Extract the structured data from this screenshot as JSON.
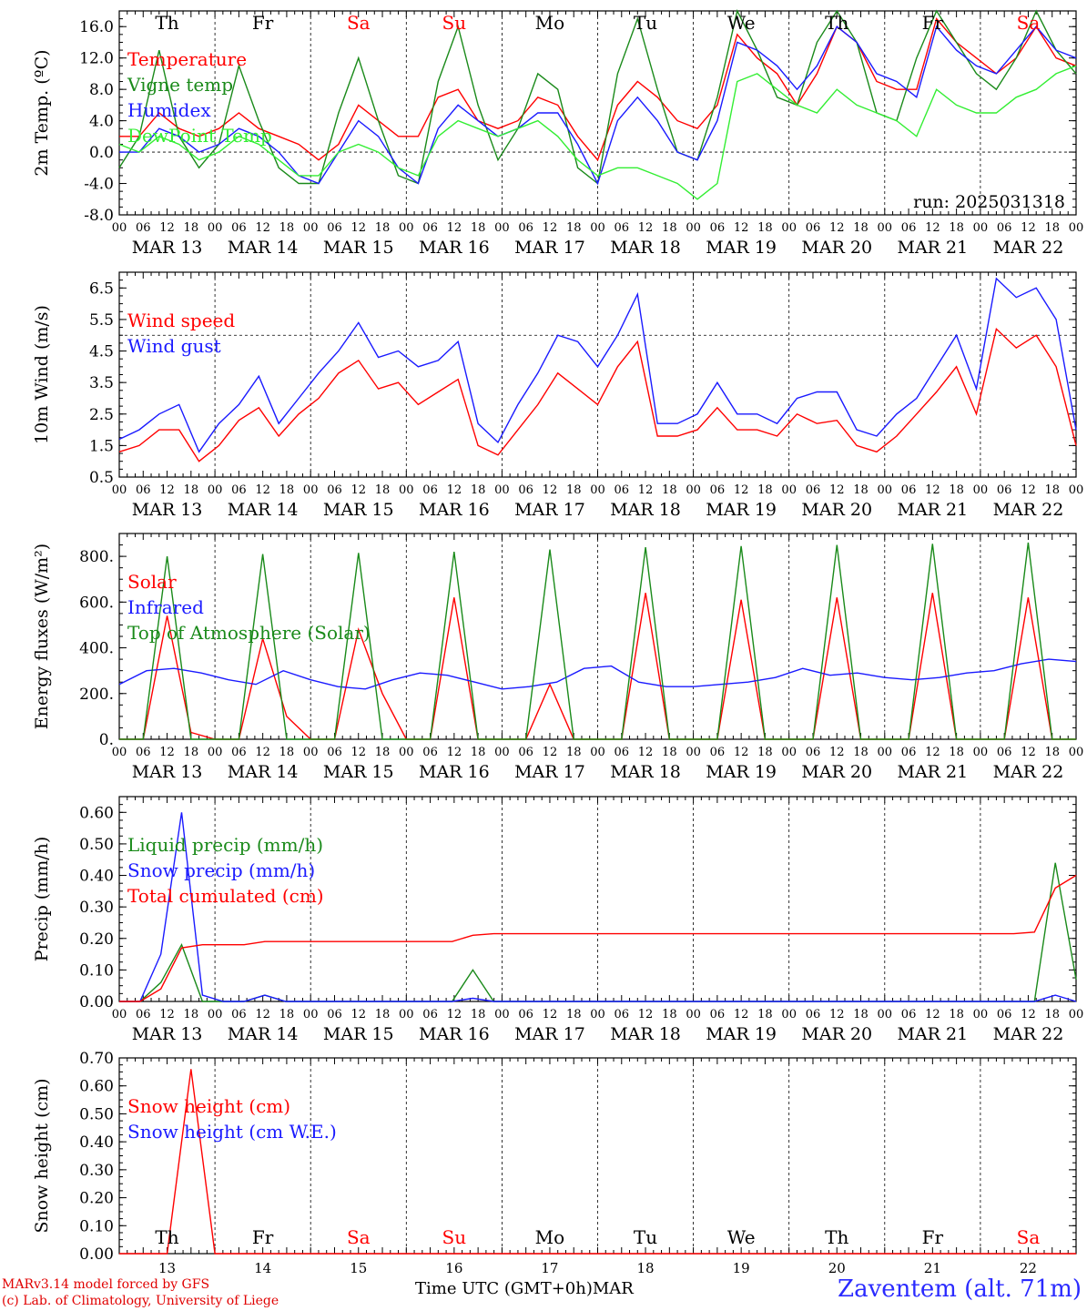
{
  "colors": {
    "red": "#ff0000",
    "green": "#1a8a1a",
    "blue": "#1a1aff",
    "lightgreen": "#33ee33",
    "black": "#000000"
  },
  "day_labels": [
    "Th",
    "Fr",
    "Sa",
    "Su",
    "Mo",
    "Tu",
    "We",
    "Th",
    "Fr",
    "Sa"
  ],
  "weekend_days": [
    "Sa",
    "Su"
  ],
  "date_labels": [
    "MAR 13",
    "MAR 14",
    "MAR 15",
    "MAR 16",
    "MAR 17",
    "MAR 18",
    "MAR 19",
    "MAR 20",
    "MAR 21",
    "MAR 22"
  ],
  "hour_labels": [
    "00",
    "06",
    "12",
    "18"
  ],
  "last_hour_label": "00",
  "bottom_day_numbers": [
    "13",
    "14",
    "15",
    "16",
    "17",
    "18",
    "19",
    "20",
    "21",
    "22"
  ],
  "footer": {
    "credit_line1": "MARv3.14 model forced by GFS",
    "credit_line2": "(c) Lab. of Climatology, University of Liege",
    "xlabel": "Time UTC (GMT+0h)",
    "month": "MAR",
    "station": "Zaventem (alt. 71m)"
  },
  "chart_data": [
    {
      "type": "line",
      "ylabel": "2m Temp. (ºC)",
      "ylim": [
        -8,
        18
      ],
      "yticks": [
        "-8.0",
        "-4.0",
        "0.0",
        "4.0",
        "8.0",
        "12.0",
        "16.0"
      ],
      "reference_line": 0,
      "annotation": "run: 2025031318",
      "show_day_names": true,
      "x_start": "2025-03-13 00",
      "x_step_hours": 6,
      "series": [
        {
          "name": "Temperature",
          "color": "red",
          "values": [
            2,
            2,
            5,
            3,
            2,
            3,
            5,
            3,
            2,
            1,
            -1,
            1,
            6,
            4,
            2,
            2,
            7,
            8,
            4,
            3,
            4,
            7,
            6,
            2,
            -1,
            6,
            9,
            7,
            4,
            3,
            6,
            15,
            12,
            10,
            6,
            10,
            16,
            14,
            9,
            8,
            8,
            17,
            14,
            12,
            10,
            12,
            16,
            12,
            11
          ]
        },
        {
          "name": "Vigne temp",
          "color": "green",
          "values": [
            -2,
            2,
            13,
            2,
            -2,
            1,
            11,
            4,
            -2,
            -4,
            -4,
            5,
            12,
            4,
            -3,
            -4,
            9,
            16,
            6,
            -1,
            3,
            10,
            8,
            -2,
            -4,
            10,
            17,
            8,
            0,
            -1,
            7,
            18,
            13,
            7,
            6,
            14,
            18,
            14,
            5,
            4,
            12,
            18,
            14,
            10,
            8,
            12,
            18,
            13,
            10
          ]
        },
        {
          "name": "Humidex",
          "color": "blue",
          "values": [
            0,
            0,
            3,
            2,
            0,
            1,
            3,
            2,
            0,
            -3,
            -4,
            0,
            4,
            2,
            -2,
            -4,
            3,
            6,
            4,
            2,
            3,
            5,
            5,
            1,
            -4,
            4,
            7,
            4,
            0,
            -1,
            4,
            14,
            13,
            11,
            8,
            11,
            16,
            14,
            10,
            9,
            7,
            16,
            13,
            11,
            10,
            13,
            16,
            13,
            12
          ]
        },
        {
          "name": "DewPoint Temp",
          "color": "lightgreen",
          "values": [
            1,
            0,
            2,
            1,
            -1,
            0,
            2,
            1,
            -1,
            -3,
            -3,
            0,
            1,
            0,
            -2,
            -3,
            2,
            4,
            3,
            2,
            3,
            4,
            2,
            -1,
            -3,
            -2,
            -2,
            -3,
            -4,
            -6,
            -4,
            9,
            10,
            8,
            6,
            5,
            8,
            6,
            5,
            4,
            2,
            8,
            6,
            5,
            5,
            7,
            8,
            10,
            11
          ]
        }
      ]
    },
    {
      "type": "line",
      "ylabel": "10m Wind (m/s)",
      "ylim": [
        0.5,
        7.0
      ],
      "yticks": [
        "0.5",
        "1.5",
        "2.5",
        "3.5",
        "4.5",
        "5.5",
        "6.5"
      ],
      "reference_line": 5.0,
      "show_day_names": false,
      "x_start": "2025-03-13 00",
      "x_step_hours": 6,
      "series": [
        {
          "name": "Wind speed",
          "color": "red",
          "values": [
            1.3,
            1.5,
            2.0,
            2.0,
            1.0,
            1.5,
            2.3,
            2.7,
            1.8,
            2.5,
            3.0,
            3.8,
            4.2,
            3.3,
            3.5,
            2.8,
            3.2,
            3.6,
            1.5,
            1.2,
            2.0,
            2.8,
            3.8,
            3.3,
            2.8,
            4.0,
            4.8,
            1.8,
            1.8,
            2.0,
            2.7,
            2.0,
            2.0,
            1.8,
            2.5,
            2.2,
            2.3,
            1.5,
            1.3,
            1.8,
            2.5,
            3.2,
            4.0,
            2.5,
            5.2,
            4.6,
            5.0,
            4.0,
            1.5
          ]
        },
        {
          "name": "Wind gust",
          "color": "blue",
          "values": [
            1.7,
            2.0,
            2.5,
            2.8,
            1.3,
            2.2,
            2.8,
            3.7,
            2.2,
            3.0,
            3.8,
            4.5,
            5.4,
            4.3,
            4.5,
            4.0,
            4.2,
            4.8,
            2.2,
            1.6,
            2.8,
            3.8,
            5.0,
            4.8,
            4.0,
            5.0,
            6.3,
            2.2,
            2.2,
            2.5,
            3.5,
            2.5,
            2.5,
            2.2,
            3.0,
            3.2,
            3.2,
            2.0,
            1.8,
            2.5,
            3.0,
            4.0,
            5.0,
            3.3,
            6.8,
            6.2,
            6.5,
            5.5,
            2.0
          ]
        }
      ]
    },
    {
      "type": "line",
      "ylabel": "Energy fluxes (W/m²)",
      "ylim": [
        0,
        900
      ],
      "yticks": [
        "0.",
        "200.",
        "400.",
        "600.",
        "800."
      ],
      "show_day_names": false,
      "x_start": "2025-03-13 00",
      "x_step_hours": 6,
      "series": [
        {
          "name": "Solar",
          "color": "red",
          "values": [
            0,
            0,
            540,
            30,
            0,
            0,
            440,
            100,
            0,
            0,
            480,
            200,
            0,
            0,
            620,
            0,
            0,
            0,
            240,
            0,
            0,
            0,
            640,
            0,
            0,
            0,
            610,
            0,
            0,
            0,
            620,
            0,
            0,
            0,
            640,
            0,
            0,
            0,
            620,
            0,
            0
          ]
        },
        {
          "name": "Infrared",
          "color": "blue",
          "values": [
            240,
            300,
            310,
            290,
            260,
            240,
            300,
            260,
            230,
            220,
            260,
            290,
            280,
            250,
            220,
            230,
            250,
            310,
            320,
            250,
            230,
            230,
            240,
            250,
            270,
            310,
            280,
            290,
            270,
            260,
            270,
            290,
            300,
            330,
            350,
            340
          ]
        },
        {
          "name": "Top of Atmosphere (Solar)",
          "color": "green",
          "values": [
            0,
            0,
            800,
            0,
            0,
            0,
            810,
            0,
            0,
            0,
            815,
            0,
            0,
            0,
            820,
            0,
            0,
            0,
            830,
            0,
            0,
            0,
            840,
            0,
            0,
            0,
            845,
            0,
            0,
            0,
            850,
            0,
            0,
            0,
            855,
            0,
            0,
            0,
            860,
            0,
            0
          ]
        }
      ]
    },
    {
      "type": "line",
      "ylabel": "Precip (mm/h)",
      "ylim": [
        0,
        0.65
      ],
      "yticks": [
        "0.00",
        "0.10",
        "0.20",
        "0.30",
        "0.40",
        "0.50",
        "0.60"
      ],
      "show_day_names": false,
      "x_start": "2025-03-13 00",
      "x_step_hours": 6,
      "series": [
        {
          "name": "Liquid precip (mm/h)",
          "color": "green",
          "values": [
            0,
            0,
            0.06,
            0.18,
            0,
            0,
            0,
            0.02,
            0,
            0,
            0,
            0,
            0,
            0,
            0,
            0,
            0,
            0.1,
            0,
            0,
            0,
            0,
            0,
            0,
            0,
            0,
            0,
            0,
            0,
            0,
            0,
            0,
            0,
            0,
            0,
            0,
            0,
            0,
            0,
            0,
            0,
            0,
            0,
            0,
            0,
            0.44,
            0.07
          ]
        },
        {
          "name": "Snow precip (mm/h)",
          "color": "blue",
          "values": [
            0,
            0,
            0.15,
            0.6,
            0.02,
            0,
            0,
            0.02,
            0,
            0,
            0,
            0,
            0,
            0,
            0,
            0,
            0,
            0.01,
            0,
            0,
            0,
            0,
            0,
            0,
            0,
            0,
            0,
            0,
            0,
            0,
            0,
            0,
            0,
            0,
            0,
            0,
            0,
            0,
            0,
            0,
            0,
            0,
            0,
            0,
            0,
            0.02,
            0
          ]
        },
        {
          "name": "Total cumulated (cm)",
          "color": "red",
          "values": [
            0,
            0,
            0.04,
            0.17,
            0.18,
            0.18,
            0.18,
            0.19,
            0.19,
            0.19,
            0.19,
            0.19,
            0.19,
            0.19,
            0.19,
            0.19,
            0.19,
            0.21,
            0.215,
            0.215,
            0.215,
            0.215,
            0.215,
            0.215,
            0.215,
            0.215,
            0.215,
            0.215,
            0.215,
            0.215,
            0.215,
            0.215,
            0.215,
            0.215,
            0.215,
            0.215,
            0.215,
            0.215,
            0.215,
            0.215,
            0.215,
            0.215,
            0.215,
            0.215,
            0.22,
            0.36,
            0.4
          ]
        }
      ]
    },
    {
      "type": "line",
      "ylabel": "Snow height (cm)",
      "ylim": [
        0,
        0.7
      ],
      "yticks": [
        "0.00",
        "0.10",
        "0.20",
        "0.30",
        "0.40",
        "0.50",
        "0.60",
        "0.70"
      ],
      "show_day_names_bottom": true,
      "x_start": "2025-03-13 00",
      "x_step_hours": 6,
      "series": [
        {
          "name": "Snow height (cm)",
          "color": "red",
          "values": [
            0,
            0,
            0,
            0.66,
            0,
            0,
            0,
            0,
            0,
            0,
            0,
            0,
            0,
            0,
            0,
            0,
            0,
            0,
            0,
            0,
            0,
            0,
            0,
            0,
            0,
            0,
            0,
            0,
            0,
            0,
            0,
            0,
            0,
            0,
            0,
            0,
            0,
            0,
            0,
            0,
            0
          ]
        },
        {
          "name": "Snow height (cm W.E.)",
          "color": "blue",
          "values": []
        }
      ]
    }
  ]
}
